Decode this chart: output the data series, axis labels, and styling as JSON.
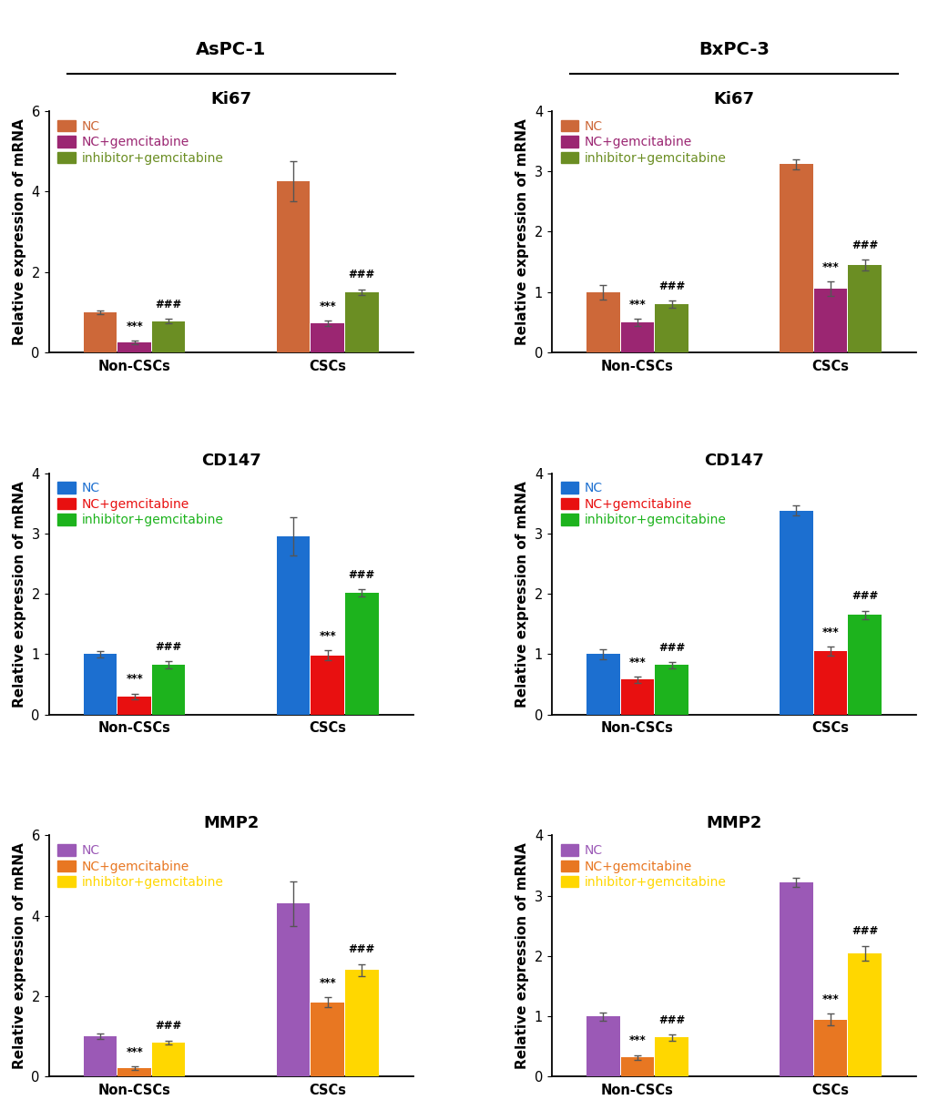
{
  "panels": [
    {
      "cell_line": "AsPC-1",
      "gene": "Ki67",
      "colors": [
        "#CD6839",
        "#9B2672",
        "#6B8E23"
      ],
      "legend_colors": [
        "#CD6839",
        "#9B2672",
        "#6B8E23"
      ],
      "legend_labels": [
        "NC",
        "NC+gemcitabine",
        "inhibitor+gemcitabine"
      ],
      "ylim": [
        0,
        6
      ],
      "yticks": [
        0,
        2,
        4,
        6
      ],
      "groups": [
        "Non-CSCs",
        "CSCs"
      ],
      "values": [
        [
          1.0,
          0.25,
          0.78
        ],
        [
          4.25,
          0.72,
          1.5
        ]
      ],
      "errors": [
        [
          0.05,
          0.04,
          0.06
        ],
        [
          0.5,
          0.07,
          0.07
        ]
      ],
      "annotations": [
        [
          "",
          "***",
          "###"
        ],
        [
          "",
          "***",
          "###"
        ]
      ]
    },
    {
      "cell_line": "BxPC-3",
      "gene": "Ki67",
      "colors": [
        "#CD6839",
        "#9B2672",
        "#6B8E23"
      ],
      "legend_colors": [
        "#CD6839",
        "#9B2672",
        "#6B8E23"
      ],
      "legend_labels": [
        "NC",
        "NC+gemcitabine",
        "inhibitor+gemcitabine"
      ],
      "ylim": [
        0,
        4
      ],
      "yticks": [
        0,
        1,
        2,
        3,
        4
      ],
      "groups": [
        "Non-CSCs",
        "CSCs"
      ],
      "values": [
        [
          1.0,
          0.5,
          0.8
        ],
        [
          3.12,
          1.05,
          1.45
        ]
      ],
      "errors": [
        [
          0.12,
          0.06,
          0.06
        ],
        [
          0.08,
          0.12,
          0.09
        ]
      ],
      "annotations": [
        [
          "",
          "***",
          "###"
        ],
        [
          "",
          "***",
          "###"
        ]
      ]
    },
    {
      "cell_line": "AsPC-1",
      "gene": "CD147",
      "colors": [
        "#1C6FD0",
        "#E81010",
        "#1DB31D"
      ],
      "legend_colors": [
        "#1C6FD0",
        "#E81010",
        "#1DB31D"
      ],
      "legend_labels": [
        "NC",
        "NC+gemcitabine",
        "inhibitor+gemcitabine"
      ],
      "ylim": [
        0,
        4
      ],
      "yticks": [
        0,
        1,
        2,
        3,
        4
      ],
      "groups": [
        "Non-CSCs",
        "CSCs"
      ],
      "values": [
        [
          1.0,
          0.3,
          0.82
        ],
        [
          2.95,
          0.98,
          2.02
        ]
      ],
      "errors": [
        [
          0.05,
          0.05,
          0.06
        ],
        [
          0.32,
          0.08,
          0.06
        ]
      ],
      "annotations": [
        [
          "",
          "***",
          "###"
        ],
        [
          "",
          "***",
          "###"
        ]
      ]
    },
    {
      "cell_line": "BxPC-3",
      "gene": "CD147",
      "colors": [
        "#1C6FD0",
        "#E81010",
        "#1DB31D"
      ],
      "legend_colors": [
        "#1C6FD0",
        "#E81010",
        "#1DB31D"
      ],
      "legend_labels": [
        "NC",
        "NC+gemcitabine",
        "inhibitor+gemcitabine"
      ],
      "ylim": [
        0,
        4
      ],
      "yticks": [
        0,
        1,
        2,
        3,
        4
      ],
      "groups": [
        "Non-CSCs",
        "CSCs"
      ],
      "values": [
        [
          1.0,
          0.58,
          0.82
        ],
        [
          3.38,
          1.05,
          1.65
        ]
      ],
      "errors": [
        [
          0.08,
          0.05,
          0.05
        ],
        [
          0.08,
          0.08,
          0.07
        ]
      ],
      "annotations": [
        [
          "",
          "***",
          "###"
        ],
        [
          "",
          "***",
          "###"
        ]
      ]
    },
    {
      "cell_line": "AsPC-1",
      "gene": "MMP2",
      "colors": [
        "#9B59B6",
        "#E87722",
        "#FFD700"
      ],
      "legend_colors": [
        "#9B59B6",
        "#E87722",
        "#FFD700"
      ],
      "legend_labels": [
        "NC",
        "NC+gemcitabine",
        "inhibitor+gemcitabine"
      ],
      "ylim": [
        0,
        6
      ],
      "yticks": [
        0,
        2,
        4,
        6
      ],
      "groups": [
        "Non-CSCs",
        "CSCs"
      ],
      "values": [
        [
          1.0,
          0.22,
          0.85
        ],
        [
          4.3,
          1.85,
          2.65
        ]
      ],
      "errors": [
        [
          0.07,
          0.04,
          0.05
        ],
        [
          0.55,
          0.12,
          0.15
        ]
      ],
      "annotations": [
        [
          "",
          "***",
          "###"
        ],
        [
          "",
          "***",
          "###"
        ]
      ]
    },
    {
      "cell_line": "BxPC-3",
      "gene": "MMP2",
      "colors": [
        "#9B59B6",
        "#E87722",
        "#FFD700"
      ],
      "legend_colors": [
        "#9B59B6",
        "#E87722",
        "#FFD700"
      ],
      "legend_labels": [
        "NC",
        "NC+gemcitabine",
        "inhibitor+gemcitabine"
      ],
      "ylim": [
        0,
        4
      ],
      "yticks": [
        0,
        1,
        2,
        3,
        4
      ],
      "groups": [
        "Non-CSCs",
        "CSCs"
      ],
      "values": [
        [
          1.0,
          0.32,
          0.65
        ],
        [
          3.22,
          0.95,
          2.05
        ]
      ],
      "errors": [
        [
          0.07,
          0.04,
          0.05
        ],
        [
          0.08,
          0.1,
          0.12
        ]
      ],
      "annotations": [
        [
          "",
          "***",
          "###"
        ],
        [
          "",
          "***",
          "###"
        ]
      ]
    }
  ],
  "col_headers": [
    "AsPC-1",
    "BxPC-3"
  ],
  "ylabel": "Relative expression of mRNA",
  "bar_width": 0.22,
  "ann_fontsize": 8.5,
  "legend_fontsize": 10,
  "title_fontsize": 13,
  "header_fontsize": 14,
  "tick_fontsize": 10.5,
  "ylabel_fontsize": 11
}
